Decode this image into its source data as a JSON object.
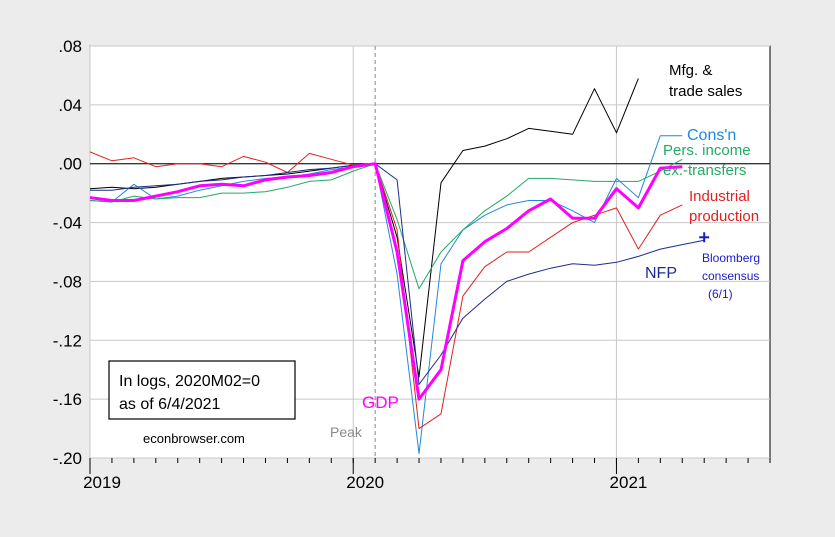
{
  "chart_data": {
    "type": "line",
    "title": "",
    "xlabel": "",
    "ylabel": "",
    "ylim": [
      -0.2,
      0.08
    ],
    "xlim": [
      "2019-01",
      "2021-08"
    ],
    "y_ticks": [
      ".08",
      ".04",
      ".00",
      "-.04",
      "-.08",
      "-.12",
      "-.16",
      "-.20"
    ],
    "y_tick_values": [
      0.08,
      0.04,
      0.0,
      -0.04,
      -0.08,
      -0.12,
      -0.16,
      -0.2
    ],
    "x_ticks": [
      "2019",
      "2020",
      "2021"
    ],
    "x_tick_values": [
      "2019-01",
      "2020-01",
      "2021-01"
    ],
    "grid": true,
    "peak": {
      "x": "2020-02",
      "label": "Peak",
      "color": "#888888"
    },
    "zero_line": 0,
    "annotation_box": {
      "lines": [
        "In logs, 2020M02=0",
        "as of 6/4/2021"
      ],
      "credit": "econbrowser.com"
    },
    "series": [
      {
        "name": "Mfg. & trade sales",
        "label_lines": [
          "Mfg. &",
          "trade sales"
        ],
        "color": "#000000",
        "width": 1,
        "x": [
          "2019-01",
          "2019-02",
          "2019-03",
          "2019-04",
          "2019-05",
          "2019-06",
          "2019-07",
          "2019-08",
          "2019-09",
          "2019-10",
          "2019-11",
          "2019-12",
          "2020-01",
          "2020-02",
          "2020-03",
          "2020-04",
          "2020-05",
          "2020-06",
          "2020-07",
          "2020-08",
          "2020-09",
          "2020-10",
          "2020-11",
          "2020-12",
          "2021-01",
          "2021-02",
          "2021-03",
          "2021-04"
        ],
        "values": [
          -0.017,
          -0.016,
          -0.017,
          -0.016,
          -0.014,
          -0.012,
          -0.01,
          -0.009,
          -0.008,
          -0.007,
          -0.005,
          -0.003,
          -0.001,
          0.0,
          -0.05,
          -0.145,
          -0.013,
          0.009,
          0.012,
          0.017,
          0.024,
          0.022,
          0.02,
          0.051,
          0.021,
          0.058,
          null,
          null
        ]
      },
      {
        "name": "Cons'n",
        "label_lines": [
          "Cons'n"
        ],
        "color": "#2288dd",
        "width": 1,
        "x": [
          "2019-01",
          "2019-02",
          "2019-03",
          "2019-04",
          "2019-05",
          "2019-06",
          "2019-07",
          "2019-08",
          "2019-09",
          "2019-10",
          "2019-11",
          "2019-12",
          "2020-01",
          "2020-02",
          "2020-03",
          "2020-04",
          "2020-05",
          "2020-06",
          "2020-07",
          "2020-08",
          "2020-09",
          "2020-10",
          "2020-11",
          "2020-12",
          "2021-01",
          "2021-02",
          "2021-03",
          "2021-04"
        ],
        "values": [
          -0.025,
          -0.026,
          -0.014,
          -0.024,
          -0.022,
          -0.018,
          -0.015,
          -0.012,
          -0.01,
          -0.009,
          -0.007,
          -0.004,
          -0.002,
          0.0,
          -0.075,
          -0.197,
          -0.068,
          -0.045,
          -0.035,
          -0.028,
          -0.025,
          -0.025,
          -0.032,
          -0.04,
          -0.01,
          -0.023,
          0.019,
          0.019
        ]
      },
      {
        "name": "Pers. income ex.-transfers",
        "label_lines": [
          "Pers. income",
          "ex.-transfers"
        ],
        "color": "#22aa66",
        "width": 1,
        "x": [
          "2019-01",
          "2019-02",
          "2019-03",
          "2019-04",
          "2019-05",
          "2019-06",
          "2019-07",
          "2019-08",
          "2019-09",
          "2019-10",
          "2019-11",
          "2019-12",
          "2020-01",
          "2020-02",
          "2020-03",
          "2020-04",
          "2020-05",
          "2020-06",
          "2020-07",
          "2020-08",
          "2020-09",
          "2020-10",
          "2020-11",
          "2020-12",
          "2021-01",
          "2021-02",
          "2021-03",
          "2021-04"
        ],
        "values": [
          -0.025,
          -0.026,
          -0.022,
          -0.024,
          -0.023,
          -0.023,
          -0.02,
          -0.02,
          -0.019,
          -0.016,
          -0.012,
          -0.011,
          -0.005,
          0.0,
          -0.038,
          -0.085,
          -0.06,
          -0.045,
          -0.032,
          -0.022,
          -0.01,
          -0.01,
          -0.011,
          -0.012,
          -0.012,
          -0.012,
          -0.005,
          0.003
        ]
      },
      {
        "name": "Industrial production",
        "label_lines": [
          "Industrial",
          "production"
        ],
        "color": "#dd2222",
        "width": 1,
        "x": [
          "2019-01",
          "2019-02",
          "2019-03",
          "2019-04",
          "2019-05",
          "2019-06",
          "2019-07",
          "2019-08",
          "2019-09",
          "2019-10",
          "2019-11",
          "2019-12",
          "2020-01",
          "2020-02",
          "2020-03",
          "2020-04",
          "2020-05",
          "2020-06",
          "2020-07",
          "2020-08",
          "2020-09",
          "2020-10",
          "2020-11",
          "2020-12",
          "2021-01",
          "2021-02",
          "2021-03",
          "2021-04"
        ],
        "values": [
          0.008,
          0.002,
          0.004,
          -0.002,
          0.0,
          0.0,
          -0.002,
          0.005,
          0.001,
          -0.006,
          0.007,
          0.003,
          -0.001,
          0.0,
          -0.045,
          -0.18,
          -0.17,
          -0.09,
          -0.07,
          -0.06,
          -0.06,
          -0.05,
          -0.04,
          -0.035,
          -0.03,
          -0.058,
          -0.035,
          -0.028
        ]
      },
      {
        "name": "NFP",
        "label_lines": [
          "NFP"
        ],
        "color": "#1c2c8c",
        "width": 1,
        "x": [
          "2019-01",
          "2019-02",
          "2019-03",
          "2019-04",
          "2019-05",
          "2019-06",
          "2019-07",
          "2019-08",
          "2019-09",
          "2019-10",
          "2019-11",
          "2019-12",
          "2020-01",
          "2020-02",
          "2020-03",
          "2020-04",
          "2020-05",
          "2020-06",
          "2020-07",
          "2020-08",
          "2020-09",
          "2020-10",
          "2020-11",
          "2020-12",
          "2021-01",
          "2021-02",
          "2021-03",
          "2021-04",
          "2021-05"
        ],
        "values": [
          -0.018,
          -0.018,
          -0.016,
          -0.015,
          -0.014,
          -0.012,
          -0.011,
          -0.009,
          -0.008,
          -0.006,
          -0.004,
          -0.003,
          -0.001,
          0.0,
          -0.011,
          -0.15,
          -0.13,
          -0.105,
          -0.092,
          -0.08,
          -0.075,
          -0.071,
          -0.068,
          -0.069,
          -0.067,
          -0.063,
          -0.058,
          -0.055,
          -0.052
        ]
      },
      {
        "name": "GDP",
        "label_lines": [
          "GDP"
        ],
        "color": "#ff00ff",
        "width": 3,
        "x": [
          "2019-01",
          "2019-02",
          "2019-03",
          "2019-04",
          "2019-05",
          "2019-06",
          "2019-07",
          "2019-08",
          "2019-09",
          "2019-10",
          "2019-11",
          "2019-12",
          "2020-01",
          "2020-02",
          "2020-03",
          "2020-04",
          "2020-05",
          "2020-06",
          "2020-07",
          "2020-08",
          "2020-09",
          "2020-10",
          "2020-11",
          "2020-12",
          "2021-01",
          "2021-02",
          "2021-03",
          "2021-04"
        ],
        "values": [
          -0.023,
          -0.025,
          -0.025,
          -0.022,
          -0.019,
          -0.015,
          -0.014,
          -0.015,
          -0.011,
          -0.009,
          -0.008,
          -0.006,
          -0.002,
          0.0,
          -0.06,
          -0.16,
          -0.14,
          -0.066,
          -0.053,
          -0.044,
          -0.032,
          -0.024,
          -0.037,
          -0.037,
          -0.017,
          -0.03,
          -0.003,
          -0.002
        ]
      }
    ],
    "bloomberg": {
      "x": "2021-05",
      "value": -0.05,
      "marker": "+",
      "label_lines": [
        "Bloomberg",
        "consensus",
        "(6/1)"
      ],
      "color": "#1a1acc"
    }
  }
}
